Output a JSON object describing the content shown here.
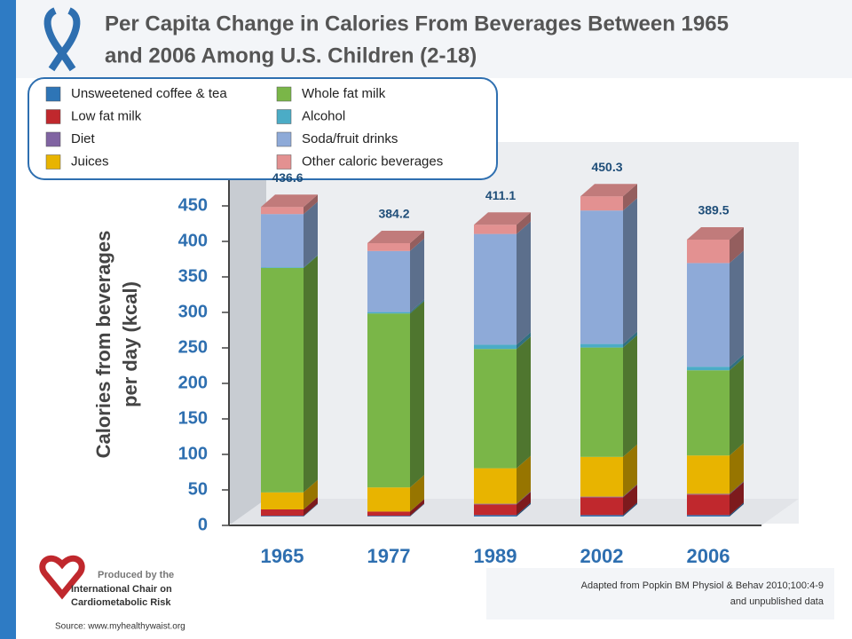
{
  "chart_data": {
    "type": "stacked_bar_3d",
    "title": [
      "Per Capita Change in Calories From Beverages Between 1965",
      "and 2006 Among U.S. Children (2-18)"
    ],
    "y_label": [
      "Calories from beverages",
      "per day (kcal)"
    ],
    "categories": [
      "1965",
      "1977",
      "1989",
      "2002",
      "2006"
    ],
    "series": [
      {
        "name": "Unsweetened coffee & tea",
        "color": "#2e75b6",
        "values": [
          1,
          1,
          2,
          2,
          2
        ]
      },
      {
        "name": "Low fat milk",
        "color": "#c0282d",
        "values": [
          9,
          6,
          15,
          25,
          29
        ]
      },
      {
        "name": "Diet",
        "color": "#8064a2",
        "values": [
          0,
          0,
          1,
          1,
          1
        ]
      },
      {
        "name": "Juices",
        "color": "#e8b400",
        "values": [
          24,
          34,
          50,
          56,
          54
        ]
      },
      {
        "name": "Whole fat milk",
        "color": "#7ab648",
        "values": [
          316,
          245,
          168,
          154,
          120
        ]
      },
      {
        "name": "Alcohol",
        "color": "#4bacc6",
        "values": [
          1,
          2,
          6,
          5,
          5
        ]
      },
      {
        "name": "Soda/fruit drinks",
        "color": "#8eaad8",
        "values": [
          75,
          86,
          156,
          188,
          146
        ]
      },
      {
        "name": "Other caloric beverages",
        "color": "#e39191",
        "values": [
          10,
          11,
          13,
          20,
          33
        ]
      }
    ],
    "totals": [
      436.6,
      384.2,
      411.1,
      450.3,
      389.5
    ],
    "ylim": [
      0,
      450
    ],
    "yticks": [
      0,
      50,
      100,
      150,
      200,
      250,
      300,
      350,
      400,
      450
    ],
    "producer": [
      "Produced by the",
      "International Chair on",
      "Cardiometabolic Risk"
    ],
    "source": "Source: www.myhealthywaist.org",
    "citation": [
      "Adapted from Popkin BM Physiol & Behav 2010;100:4-9",
      "and unpublished data"
    ]
  }
}
